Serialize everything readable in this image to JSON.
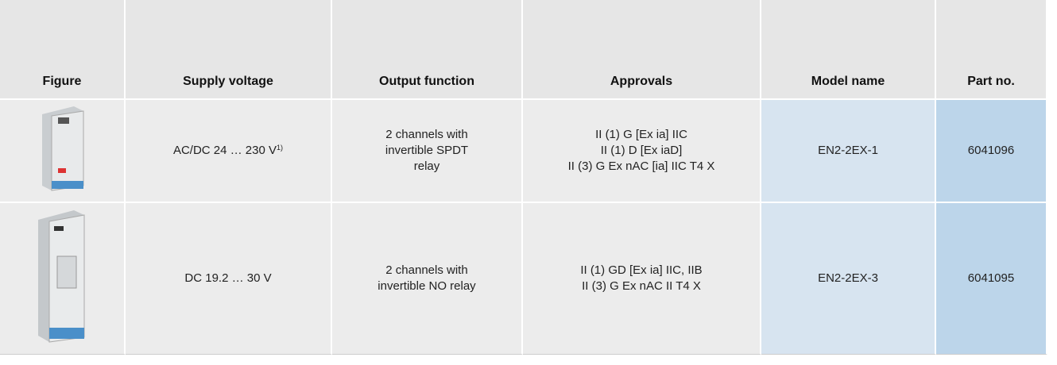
{
  "table": {
    "header": [
      "Figure",
      "Supply voltage",
      "Output function",
      "Approvals",
      "Model name",
      "Part no."
    ],
    "rows": [
      {
        "supply_voltage": "AC/DC 24 … 230 V",
        "supply_note": "1)",
        "output_function": [
          "2 channels with",
          "invertible SPDT",
          "relay"
        ],
        "approvals": [
          "II (1) G [Ex ia] IIC",
          "II (1) D [Ex iaD]",
          "II (3) G Ex nAC [ia] IIC T4 X"
        ],
        "model_name": "EN2-2EX-1",
        "part_no": "6041096"
      },
      {
        "supply_voltage": "DC 19.2 … 30 V",
        "output_function": [
          "2 channels with",
          "invertible NO relay"
        ],
        "approvals": [
          "II (1) GD [Ex ia] IIC, IIB",
          "II (3) G Ex nAC II T4 X"
        ],
        "model_name": "EN2-2EX-3",
        "part_no": "6041095"
      }
    ]
  }
}
